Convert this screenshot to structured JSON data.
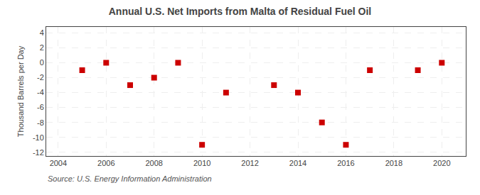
{
  "chart_data": {
    "type": "scatter",
    "title": "Annual U.S. Net Imports from Malta of Residual Fuel Oil",
    "ylabel": "Thousand Barrels per Day",
    "annotations": [
      "Source: U.S. Energy Information Administration"
    ],
    "x": [
      2005,
      2006,
      2007,
      2008,
      2009,
      2010,
      2011,
      2013,
      2014,
      2015,
      2016,
      2017,
      2019,
      2020
    ],
    "values": [
      -1.0,
      0.0,
      -3.0,
      -2.0,
      0.0,
      -11.0,
      -4.0,
      -3.0,
      -4.0,
      -8.0,
      -11.0,
      -1.0,
      -1.0,
      0.0
    ],
    "color": "#cc0000",
    "marker": "square",
    "xlim": [
      2003.5,
      2021.0
    ],
    "ylim": [
      -12.5,
      4.8
    ],
    "xticks": [
      2004,
      2006,
      2008,
      2010,
      2012,
      2014,
      2016,
      2018,
      2020
    ],
    "yticks": [
      4,
      2,
      0,
      -2,
      -4,
      -6,
      -8,
      -10,
      -12
    ],
    "grid": true
  }
}
